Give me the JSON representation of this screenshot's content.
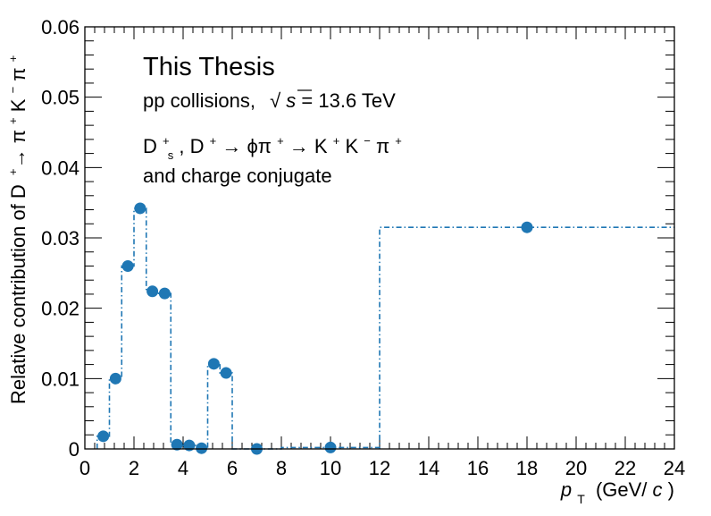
{
  "chart_data": {
    "type": "scatter",
    "step_line": true,
    "xlim": [
      0,
      24
    ],
    "ylim": [
      0,
      0.06
    ],
    "x_ticks": [
      0,
      2,
      4,
      6,
      8,
      10,
      12,
      14,
      16,
      18,
      20,
      22,
      24
    ],
    "x_tick_labels": [
      "0",
      "2",
      "4",
      "6",
      "8",
      "10",
      "12",
      "14",
      "16",
      "18",
      "20",
      "22",
      "24"
    ],
    "y_ticks": [
      0,
      0.01,
      0.02,
      0.03,
      0.04,
      0.05,
      0.06
    ],
    "y_tick_labels": [
      "0",
      "0.01",
      "0.02",
      "0.03",
      "0.04",
      "0.05",
      "0.06"
    ],
    "xlabel_main": "p",
    "xlabel_sub": "T",
    "xlabel_unit": "(GeV/",
    "xlabel_unit_c": "c",
    "xlabel_unit_end": ")",
    "ylabel_main": "Relative contribution of D",
    "ylabel_D_sup": "+",
    "ylabel_arrow": "→ π",
    "ylabel_pi_sup": "+",
    "ylabel_K": "K",
    "ylabel_K_sup": "−",
    "ylabel_pi2": "π",
    "ylabel_pi2_sup": "+",
    "annotations": {
      "title": "This Thesis",
      "line1_pre": "pp collisions,",
      "line1_sqrt": "√",
      "line1_s": "s",
      "line1_post": " = 13.6 TeV",
      "line2_D": "D",
      "line2_s_sup": "+",
      "line2_s_sub": "s",
      "line2_mid": ", D",
      "line2_D_sup": "+",
      "line2_arrow1": " → ϕπ",
      "line2_pi_sup": "+",
      "line2_arrow2": "→ K",
      "line2_K_sup": "+",
      "line2_K2": "K",
      "line2_K2_sup": "−",
      "line2_pi2": "π",
      "line2_pi2_sup": "+",
      "line3": "and charge conjugate"
    },
    "series": [
      {
        "color": "#1f77b4",
        "bins": [
          {
            "x_low": 0.5,
            "x_high": 1.0,
            "x": 0.75,
            "y": 0.0018
          },
          {
            "x_low": 1.0,
            "x_high": 1.5,
            "x": 1.25,
            "y": 0.01
          },
          {
            "x_low": 1.5,
            "x_high": 2.0,
            "x": 1.75,
            "y": 0.026
          },
          {
            "x_low": 2.0,
            "x_high": 2.5,
            "x": 2.25,
            "y": 0.0342
          },
          {
            "x_low": 2.5,
            "x_high": 3.0,
            "x": 2.75,
            "y": 0.0224
          },
          {
            "x_low": 3.0,
            "x_high": 3.5,
            "x": 3.25,
            "y": 0.0221
          },
          {
            "x_low": 3.5,
            "x_high": 4.0,
            "x": 3.75,
            "y": 0.0006
          },
          {
            "x_low": 4.0,
            "x_high": 4.5,
            "x": 4.25,
            "y": 0.0005
          },
          {
            "x_low": 4.5,
            "x_high": 5.0,
            "x": 4.75,
            "y": 0.0001
          },
          {
            "x_low": 5.0,
            "x_high": 5.5,
            "x": 5.25,
            "y": 0.0121
          },
          {
            "x_low": 5.5,
            "x_high": 6.0,
            "x": 5.75,
            "y": 0.0108
          },
          {
            "x_low": 6.0,
            "x_high": 8.0,
            "x": 7.0,
            "y": 0.0
          },
          {
            "x_low": 8.0,
            "x_high": 12.0,
            "x": 10.0,
            "y": 0.0002
          },
          {
            "x_low": 12.0,
            "x_high": 24.0,
            "x": 18.0,
            "y": 0.0315
          }
        ]
      }
    ]
  }
}
